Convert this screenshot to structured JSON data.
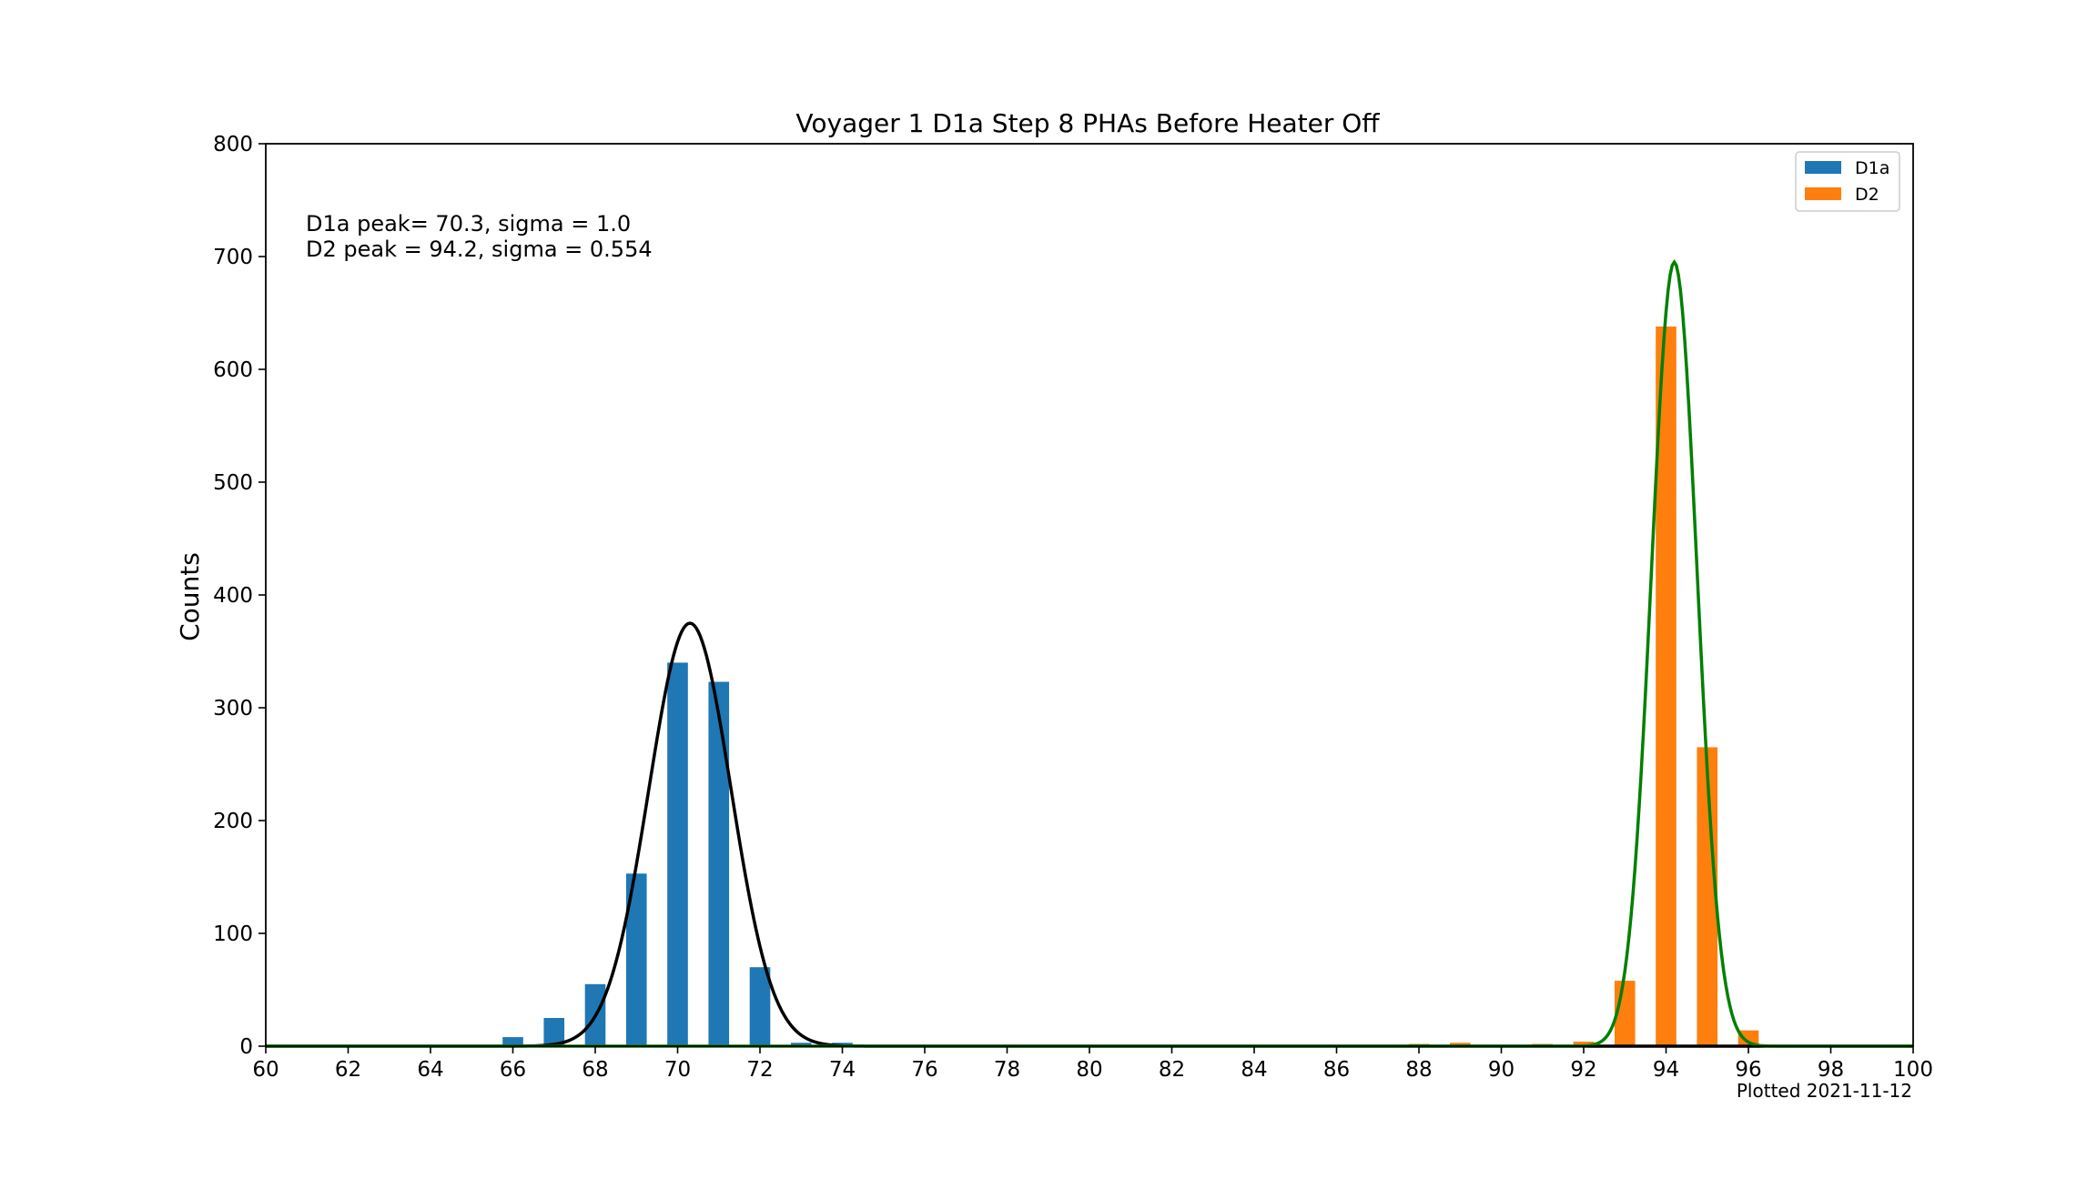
{
  "chart_data": {
    "type": "bar",
    "title": "Voyager 1 D1a Step 8 PHAs Before Heater Off",
    "xlabel": "",
    "ylabel": "Counts",
    "xlim": [
      60,
      100
    ],
    "ylim": [
      0,
      800
    ],
    "xticks": [
      "60",
      "62",
      "64",
      "66",
      "68",
      "70",
      "72",
      "74",
      "76",
      "78",
      "80",
      "82",
      "84",
      "86",
      "88",
      "90",
      "92",
      "94",
      "96",
      "98",
      "100"
    ],
    "yticks": [
      "0",
      "100",
      "200",
      "300",
      "400",
      "500",
      "600",
      "700",
      "800"
    ],
    "grid": false,
    "legend_position": "top-right",
    "series": [
      {
        "name": "D1a",
        "color": "#1f77b4",
        "x": [
          66,
          67,
          68,
          69,
          70,
          71,
          72,
          73,
          74
        ],
        "values": [
          8,
          25,
          55,
          153,
          340,
          323,
          70,
          3,
          3
        ]
      },
      {
        "name": "D2",
        "color": "#ff7f0e",
        "x": [
          88,
          89,
          91,
          92,
          93,
          94,
          95,
          96
        ],
        "values": [
          2,
          3,
          2,
          4,
          58,
          638,
          265,
          14
        ]
      }
    ],
    "fits": [
      {
        "color": "#000000",
        "peak": 70.3,
        "sigma": 1.0,
        "amplitude": 375
      },
      {
        "color": "#008000",
        "peak": 94.2,
        "sigma": 0.554,
        "amplitude": 695
      }
    ],
    "annotations": [
      "D1a peak= 70.3, sigma = 1.0",
      "D2 peak = 94.2, sigma = 0.554"
    ],
    "footer": "Plotted 2021-11-12"
  }
}
